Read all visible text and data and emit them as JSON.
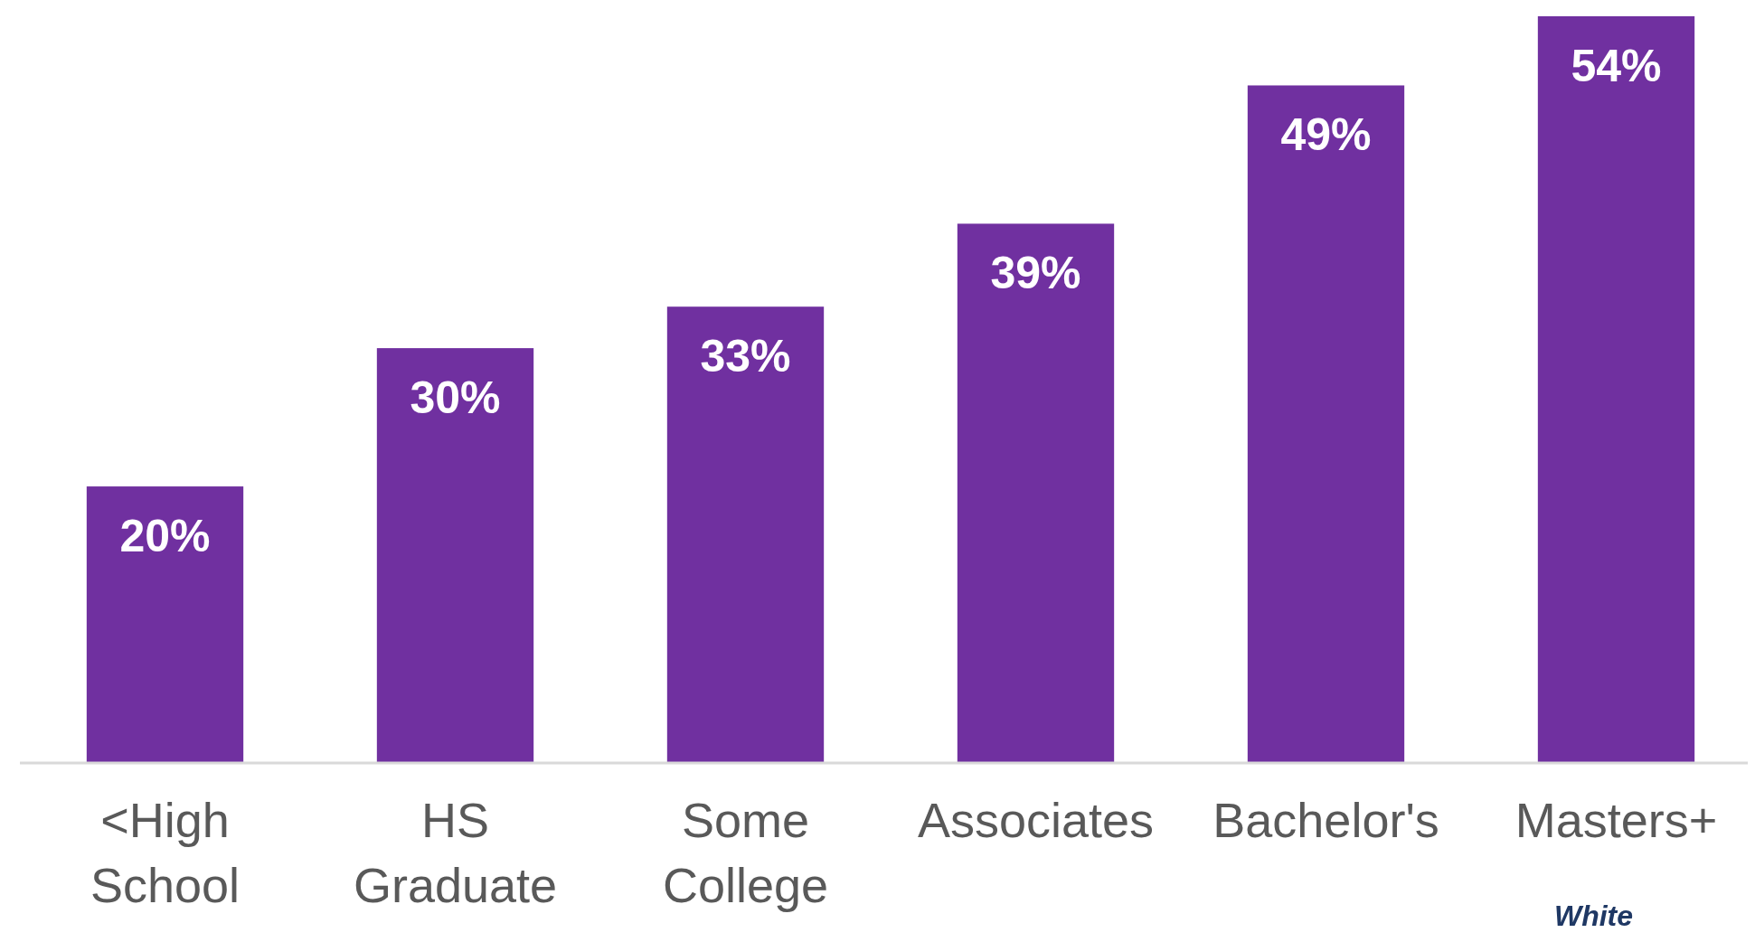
{
  "chart_data": {
    "type": "bar",
    "categories": [
      "<High School",
      "HS Graduate",
      "Some College",
      "Associates",
      "Bachelor's",
      "Masters+"
    ],
    "values": [
      20,
      30,
      33,
      39,
      49,
      54
    ],
    "color": "#7030a0",
    "value_labels": [
      "20%",
      "30%",
      "33%",
      "39%",
      "49%",
      "54%"
    ],
    "annotations": [
      "White"
    ]
  }
}
